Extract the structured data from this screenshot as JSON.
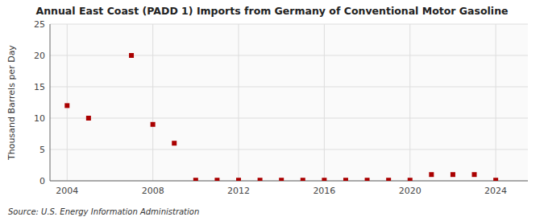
{
  "chart_data": {
    "type": "scatter",
    "title": "Annual East Coast (PADD 1) Imports from Germany of Conventional Motor Gasoline",
    "ylabel": "Thousand Barrels per Day",
    "source": "Source: U.S. Energy Information Administration",
    "x": [
      2004,
      2005,
      2007,
      2008,
      2009,
      2010,
      2011,
      2012,
      2013,
      2014,
      2015,
      2016,
      2017,
      2018,
      2019,
      2020,
      2021,
      2022,
      2023,
      2024
    ],
    "values": [
      12,
      10,
      20,
      9,
      6,
      0.1,
      0.1,
      0.1,
      0.1,
      0.1,
      0.1,
      0.1,
      0.1,
      0.1,
      0.1,
      0.1,
      1,
      1,
      1,
      0.1
    ],
    "color": "#aa0000",
    "marker": "square",
    "xlim": [
      2003.2,
      2025.5
    ],
    "xticks": [
      2004,
      2008,
      2012,
      2016,
      2020,
      2024
    ],
    "ylim": [
      0,
      25
    ],
    "yticks": [
      0,
      5,
      10,
      15,
      20,
      25
    ],
    "grid": true
  }
}
